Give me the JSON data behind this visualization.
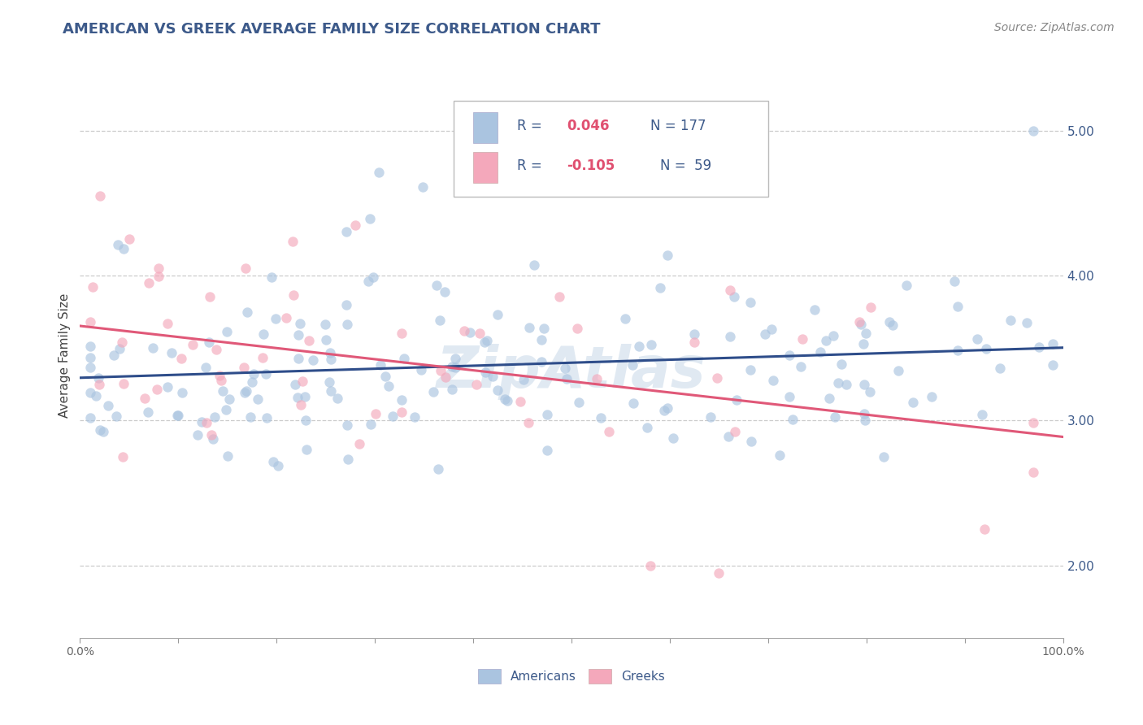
{
  "title": "AMERICAN VS GREEK AVERAGE FAMILY SIZE CORRELATION CHART",
  "source": "Source: ZipAtlas.com",
  "ylabel": "Average Family Size",
  "xlim": [
    0,
    1
  ],
  "ylim": [
    1.5,
    5.4
  ],
  "yticks": [
    2.0,
    3.0,
    4.0,
    5.0
  ],
  "xticks": [
    0.0,
    0.1,
    0.2,
    0.3,
    0.4,
    0.5,
    0.6,
    0.7,
    0.8,
    0.9,
    1.0
  ],
  "xtick_labels": [
    "0.0%",
    "",
    "",
    "",
    "",
    "",
    "",
    "",
    "",
    "",
    "100.0%"
  ],
  "title_color": "#3d5a8a",
  "title_fontsize": 13,
  "americans_color": "#aac4e0",
  "greeks_color": "#f4a8bb",
  "trendline_american_color": "#2e4d8a",
  "trendline_greek_color": "#e05878",
  "watermark": "ZipAtlas",
  "dot_size": 80,
  "dot_alpha": 0.65,
  "grid_color": "#cccccc",
  "grid_style": "--",
  "background_color": "#ffffff",
  "ytick_color": "#3d5a8a",
  "ytick_fontsize": 11,
  "legend_r_am": "0.046",
  "legend_n_am": "177",
  "legend_r_gr": "-0.105",
  "legend_n_gr": "59",
  "legend_text_color": "#3d5a8a",
  "legend_val_color": "#3d5a8a"
}
